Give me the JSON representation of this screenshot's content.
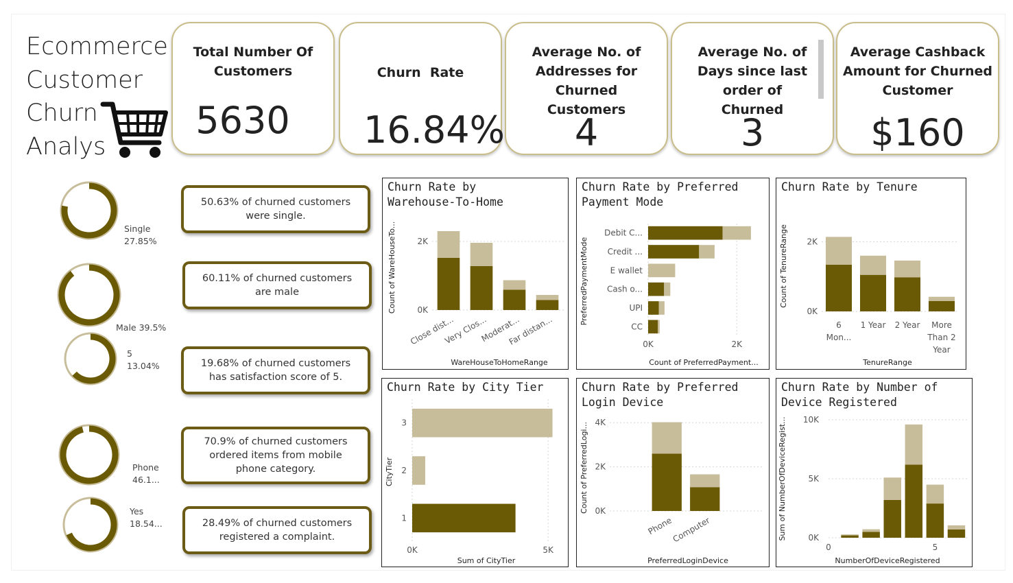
{
  "title_lines": [
    "Ecommerce",
    "Customer",
    "Churn",
    "Analys"
  ],
  "colors": {
    "dark": "#6b5a05",
    "light": "#c8bd9a",
    "kpi_border": "#c9bd8a"
  },
  "icons": {
    "cart": "shopping-cart-icon"
  },
  "kpis": [
    {
      "label": "Total Number Of Customers",
      "value": "5630"
    },
    {
      "label": "Churn  Rate",
      "value": "16.84%"
    },
    {
      "label": "Average No. of Addresses for Churned Customers",
      "value": "4"
    },
    {
      "label": "Average No. of Days since last order of Churned",
      "value": "3"
    },
    {
      "label": "Average Cashback Amount for Churned Customer",
      "value": "$160"
    }
  ],
  "donuts": [
    {
      "label": "Single",
      "value": "27.85%",
      "fraction": 0.2785
    },
    {
      "label": "Male 39.5%",
      "value": "",
      "fraction": 0.395
    },
    {
      "label": "5",
      "value": "13.04%",
      "fraction": 0.1304
    },
    {
      "label": "Phone",
      "value": "46.1...",
      "fraction": 0.461
    },
    {
      "label": "Yes",
      "value": "18.54...",
      "fraction": 0.1854
    }
  ],
  "callouts": [
    "50.63% of churned customers were single.",
    "60.11% of churned customers are male",
    "19.68% of churned customers has satisfaction score of 5.",
    "70.9% of churned customers ordered items from mobile phone category.",
    "28.49% of churned customers registered a complaint."
  ],
  "chart_data": [
    {
      "type": "bar",
      "stacked": true,
      "orientation": "vertical",
      "title": "Churn Rate by Warehouse-To-Home",
      "xlabel": "WareHouseToHomeRange",
      "ylabel": "Count of WareHouseTo...",
      "categories": [
        "Close dist...",
        "Very Clos...",
        "Moderat...",
        "Far distan..."
      ],
      "series": [
        {
          "values": [
            1520,
            1280,
            590,
            290
          ]
        },
        {
          "values": [
            780,
            680,
            280,
            150
          ]
        }
      ],
      "ylim": [
        0,
        2600
      ],
      "yticks": [
        0,
        2000
      ],
      "ytick_labels": [
        "0K",
        "2K"
      ],
      "grid": true
    },
    {
      "type": "bar",
      "stacked": true,
      "orientation": "horizontal",
      "title": "Churn Rate by Preferred Payment Mode",
      "xlabel": "Count of PreferredPayment...",
      "ylabel": "PreferredPaymentMode",
      "categories": [
        "Debit C...",
        "Credit ...",
        "E wallet",
        "Cash o...",
        "UPI",
        "CC"
      ],
      "series": [
        {
          "values": [
            1680,
            1150,
            0,
            360,
            240,
            220
          ]
        },
        {
          "values": [
            640,
            350,
            610,
            140,
            130,
            40
          ]
        }
      ],
      "xlim": [
        0,
        2600
      ],
      "xticks": [
        0,
        2000
      ],
      "xtick_labels": [
        "0K",
        "2K"
      ],
      "grid": true
    },
    {
      "type": "bar",
      "stacked": true,
      "orientation": "vertical",
      "title": "Churn Rate by Tenure",
      "xlabel": "TenureRange",
      "ylabel": "Count of TenureRange",
      "categories": [
        "6 Mon...",
        "1 Year",
        "2 Year",
        "More Than 2 Year"
      ],
      "series": [
        {
          "values": [
            1340,
            1050,
            980,
            300
          ]
        },
        {
          "values": [
            800,
            550,
            480,
            120
          ]
        }
      ],
      "ylim": [
        0,
        2600
      ],
      "yticks": [
        0,
        2000
      ],
      "ytick_labels": [
        "0K",
        "2K"
      ],
      "grid": true
    },
    {
      "type": "bar",
      "stacked": true,
      "orientation": "horizontal",
      "title": "Churn Rate by City Tier",
      "xlabel": "Sum of CityTier",
      "ylabel": "CityTier",
      "categories": [
        "3",
        "2",
        "1"
      ],
      "series": [
        {
          "values": [
            0,
            0,
            3800
          ]
        },
        {
          "values": [
            5160,
            480,
            0
          ]
        }
      ],
      "xlim": [
        0,
        5500
      ],
      "xticks": [
        0,
        5000
      ],
      "xtick_labels": [
        "0K",
        "5K"
      ],
      "grid": true
    },
    {
      "type": "bar",
      "stacked": true,
      "orientation": "vertical",
      "title": "Churn Rate by Preferred Login Device",
      "xlabel": "PreferredLoginDevice",
      "ylabel": "Count of PreferredLogi...",
      "categories": [
        "Phone",
        "Computer"
      ],
      "series": [
        {
          "values": [
            2600,
            1080
          ]
        },
        {
          "values": [
            1420,
            580
          ]
        }
      ],
      "ylim": [
        0,
        4100
      ],
      "yticks": [
        0,
        2000,
        4000
      ],
      "ytick_labels": [
        "0K",
        "2K",
        "4K"
      ],
      "grid": true
    },
    {
      "type": "bar",
      "stacked": true,
      "orientation": "vertical",
      "title": "Churn Rate by Number of Device Registered",
      "xlabel": "NumberOfDeviceRegistered",
      "ylabel": "Sum of NumberOfDeviceRegist...",
      "categories": [
        "1",
        "2",
        "3",
        "4",
        "5",
        "6"
      ],
      "x": [
        1,
        2,
        3,
        4,
        5,
        6
      ],
      "series": [
        {
          "values": [
            200,
            500,
            3200,
            6200,
            2900,
            700
          ]
        },
        {
          "values": [
            80,
            220,
            1900,
            3400,
            1600,
            350
          ]
        }
      ],
      "ylim": [
        0,
        10000
      ],
      "yticks": [
        0,
        5000,
        10000
      ],
      "ytick_labels": [
        "0K",
        "5K",
        "10K"
      ],
      "xlim": [
        0,
        6.5
      ],
      "xticks": [
        0,
        5
      ],
      "xtick_labels": [
        "0",
        "5"
      ],
      "grid": true
    }
  ]
}
